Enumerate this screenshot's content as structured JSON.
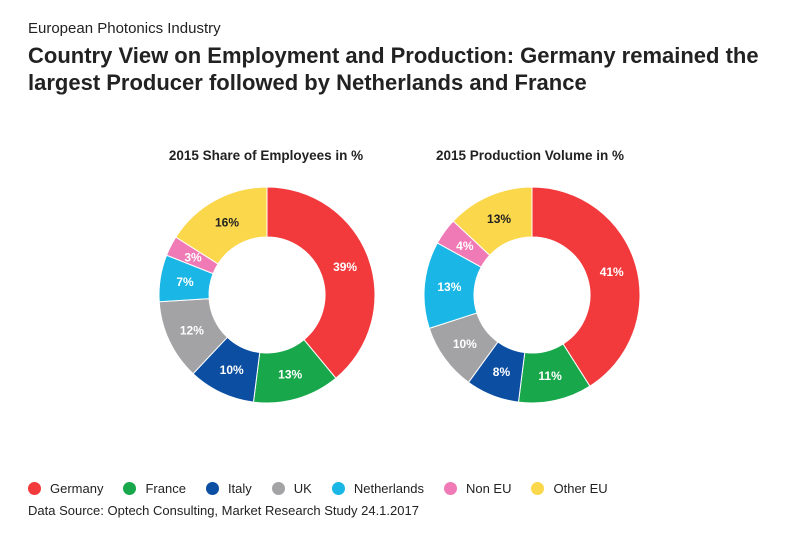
{
  "header": {
    "supertitle": "European Photonics Industry",
    "title": "Country View on Employment and Production: Germany remained the largest Producer followed by Netherlands and France"
  },
  "footer": {
    "source": "Data Source: Optech Consulting, Market Research Study 24.1.2017"
  },
  "chart_data": [
    {
      "type": "pie",
      "donut": true,
      "title": "2015 Share of Employees in %",
      "categories": [
        "Germany",
        "France",
        "Italy",
        "UK",
        "Netherlands",
        "Non EU",
        "Other EU"
      ],
      "values": [
        39,
        13,
        10,
        12,
        7,
        3,
        16
      ],
      "labels": [
        "39%",
        "13%",
        "10%",
        "12%",
        "7%",
        "3%",
        "16%"
      ],
      "colors": [
        "#f23a3c",
        "#18a84b",
        "#0b4ea2",
        "#a3a3a5",
        "#1ab6e5",
        "#ef7ab5",
        "#fbd74c"
      ],
      "legend": "bottom"
    },
    {
      "type": "pie",
      "donut": true,
      "title": "2015 Production Volume in %",
      "categories": [
        "Germany",
        "France",
        "Italy",
        "UK",
        "Netherlands",
        "Non EU",
        "Other EU"
      ],
      "values": [
        41,
        11,
        8,
        10,
        13,
        4,
        13
      ],
      "labels": [
        "41%",
        "11%",
        "8%",
        "10%",
        "13%",
        "4%",
        "13%"
      ],
      "colors": [
        "#f23a3c",
        "#18a84b",
        "#0b4ea2",
        "#a3a3a5",
        "#1ab6e5",
        "#ef7ab5",
        "#fbd74c"
      ],
      "legend": "bottom"
    }
  ],
  "legend": {
    "items": [
      {
        "label": "Germany",
        "color": "#f23a3c"
      },
      {
        "label": "France",
        "color": "#18a84b"
      },
      {
        "label": "Italy",
        "color": "#0b4ea2"
      },
      {
        "label": "UK",
        "color": "#a3a3a5"
      },
      {
        "label": "Netherlands",
        "color": "#1ab6e5"
      },
      {
        "label": "Non EU",
        "color": "#ef7ab5"
      },
      {
        "label": "Other EU",
        "color": "#fbd74c"
      }
    ]
  }
}
